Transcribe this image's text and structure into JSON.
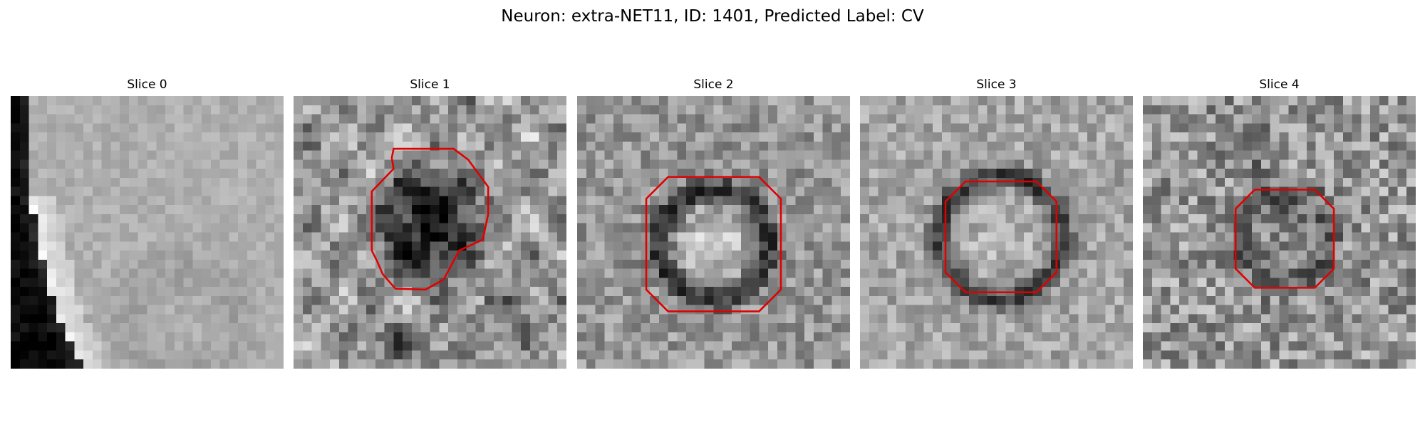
{
  "figure": {
    "title": "Neuron: extra-NET11, ID: 1401, Predicted Label: CV"
  },
  "panels": [
    {
      "title": "Slice 0",
      "pattern": "edge",
      "contour": false
    },
    {
      "title": "Slice 1",
      "pattern": "dark-blob",
      "contour": true
    },
    {
      "title": "Slice 2",
      "pattern": "ring-large",
      "contour": true
    },
    {
      "title": "Slice 3",
      "pattern": "ring-medium",
      "contour": true
    },
    {
      "title": "Slice 4",
      "pattern": "ring-small",
      "contour": true
    }
  ],
  "colors": {
    "contour": "#e00000",
    "background": "#ffffff"
  }
}
